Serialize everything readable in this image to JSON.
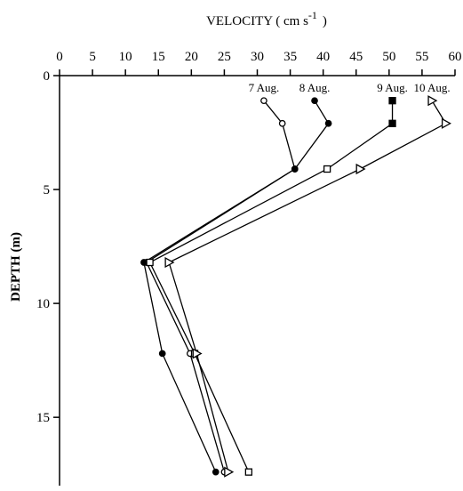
{
  "chart_data": {
    "type": "line",
    "x_label": "VELOCITY ( cm s",
    "x_label_sup": "-1",
    "x_label_end": ")",
    "y_label": "DEPTH (m)",
    "xlim": [
      0,
      60
    ],
    "xticks": [
      0,
      5,
      10,
      15,
      20,
      25,
      30,
      35,
      40,
      45,
      50,
      55,
      60
    ],
    "ylim": [
      0,
      18
    ],
    "yticks": [
      0,
      5,
      10,
      15
    ],
    "y_inverted": true,
    "series": [
      {
        "name": "7 Aug.",
        "marker": "open-circle",
        "color": "#000000",
        "x": [
          31,
          33.8,
          35.7,
          13.2,
          19.8,
          25
        ],
        "values": [
          1.1,
          2.1,
          4.1,
          8.2,
          12.2,
          17.4
        ]
      },
      {
        "name": "8 Aug.",
        "marker": "filled-circle",
        "color": "#000000",
        "x": [
          38.7,
          40.8,
          35.7,
          12.8,
          15.6,
          23.7
        ],
        "values": [
          1.1,
          2.1,
          4.1,
          8.2,
          12.2,
          17.4
        ]
      },
      {
        "name": "9 Aug.",
        "marker": "square",
        "color": "#000000",
        "x": [
          50.5,
          50.5,
          40.6,
          13.7,
          20.5,
          28.7
        ],
        "values": [
          1.1,
          2.1,
          4.1,
          8.2,
          12.2,
          17.4
        ]
      },
      {
        "name": "10 Aug.",
        "marker": "open-triangle",
        "color": "#000000",
        "x": [
          56.5,
          58.6,
          45.6,
          16.6,
          20.8,
          25.6
        ],
        "values": [
          1.1,
          2.1,
          4.1,
          8.2,
          12.2,
          17.4
        ]
      }
    ]
  }
}
